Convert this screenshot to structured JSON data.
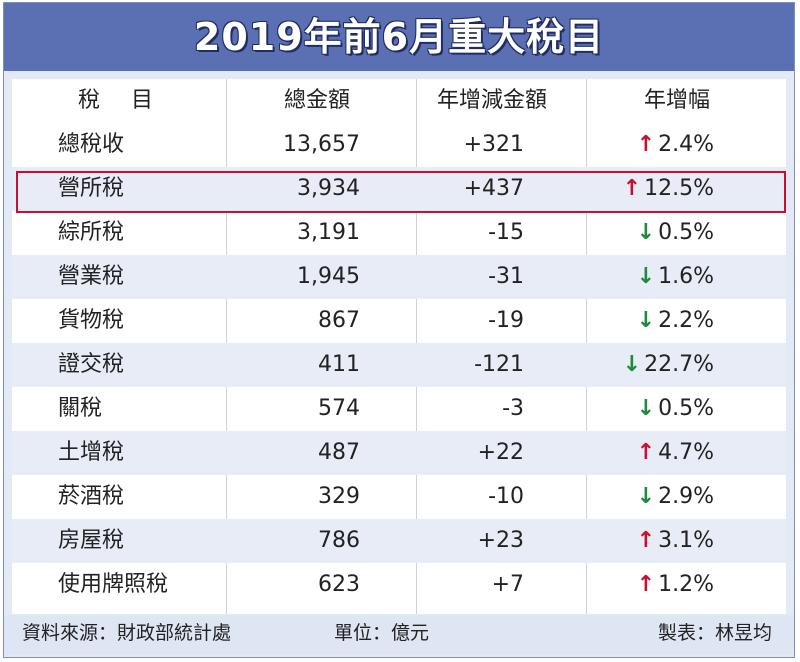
{
  "title": "2019年前6月重大稅目",
  "chart_data": {
    "type": "table",
    "title": "2019年前6月重大稅目",
    "columns": [
      "稅 目",
      "總金額",
      "年增減金額",
      "年增幅"
    ],
    "rows": [
      {
        "name": "總稅收",
        "total": "13,657",
        "diff": "+321",
        "direction": "up",
        "rate": "2.4%"
      },
      {
        "name": "營所稅",
        "total": "3,934",
        "diff": "+437",
        "direction": "up",
        "rate": "12.5%"
      },
      {
        "name": "綜所稅",
        "total": "3,191",
        "diff": "-15",
        "direction": "down",
        "rate": "0.5%"
      },
      {
        "name": "營業稅",
        "total": "1,945",
        "diff": "-31",
        "direction": "down",
        "rate": "1.6%"
      },
      {
        "name": "貨物稅",
        "total": "867",
        "diff": "-19",
        "direction": "down",
        "rate": "2.2%"
      },
      {
        "name": "證交稅",
        "total": "411",
        "diff": "-121",
        "direction": "down",
        "rate": "22.7%"
      },
      {
        "name": "關稅",
        "total": "574",
        "diff": "-3",
        "direction": "down",
        "rate": "0.5%"
      },
      {
        "name": "土增稅",
        "total": "487",
        "diff": "+22",
        "direction": "up",
        "rate": "4.7%"
      },
      {
        "name": "菸酒稅",
        "total": "329",
        "diff": "-10",
        "direction": "down",
        "rate": "2.9%"
      },
      {
        "name": "房屋稅",
        "total": "786",
        "diff": "+23",
        "direction": "up",
        "rate": "3.1%"
      },
      {
        "name": "使用牌照稅",
        "total": "623",
        "diff": "+7",
        "direction": "up",
        "rate": "1.2%"
      }
    ],
    "highlighted_row": "營所稅"
  },
  "footer": {
    "source": "資料來源：財政部統計處",
    "unit": "單位：億元",
    "maker": "製表：林昱均"
  },
  "colors": {
    "title_bg": "#5b6fb3",
    "up_arrow": "#c8102e",
    "down_arrow": "#1f8a3a",
    "highlight_border": "#c8102e"
  }
}
